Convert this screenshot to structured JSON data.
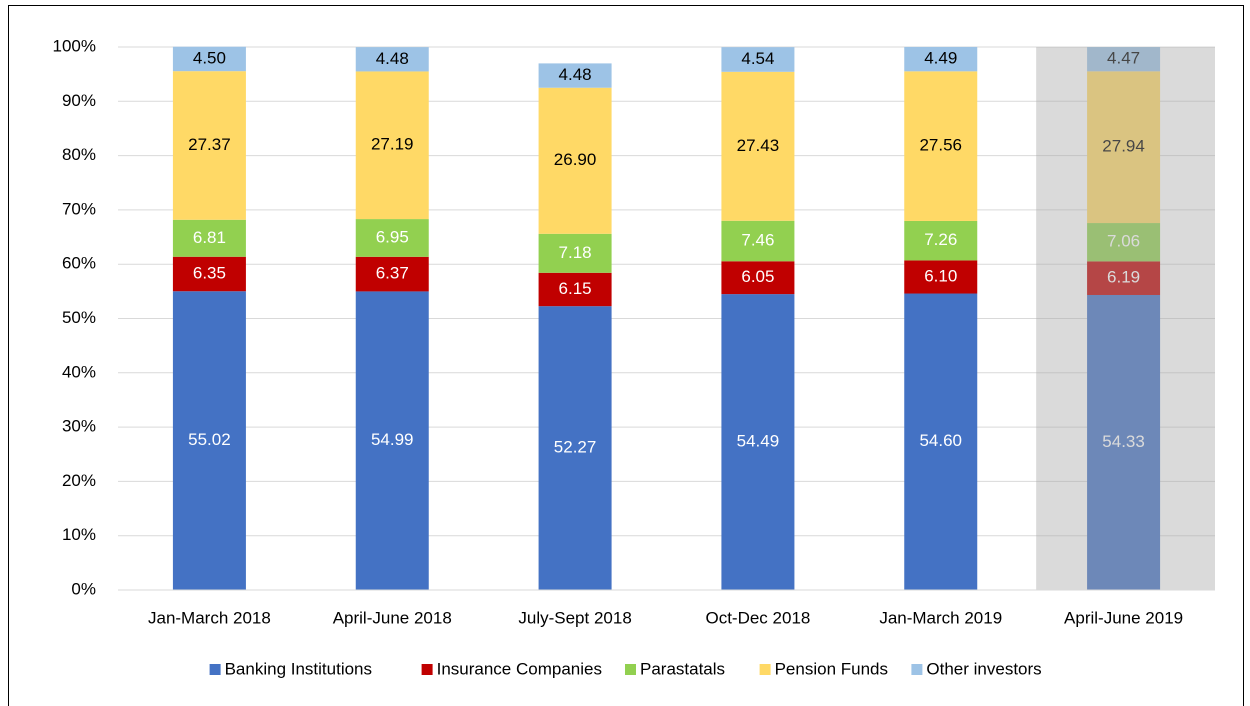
{
  "chart_data": {
    "type": "stacked_bar",
    "categories": [
      "Jan-March 2018",
      "April-June 2018",
      "July-Sept 2018",
      "Oct-Dec 2018",
      "Jan-March 2019",
      "April-June 2019"
    ],
    "series": [
      {
        "name": "Banking Institutions",
        "color": "#4472c4",
        "label_color": "#ffffff",
        "values": [
          55.02,
          54.99,
          52.27,
          54.49,
          54.6,
          54.33
        ],
        "value_labels": [
          "55.02",
          "54.99",
          "52.27",
          "54.49",
          "54.60",
          "54.33"
        ]
      },
      {
        "name": "Insurance Companies",
        "color": "#c00000",
        "label_color": "#ffffff",
        "values": [
          6.35,
          6.37,
          6.15,
          6.05,
          6.1,
          6.19
        ],
        "value_labels": [
          "6.35",
          "6.37",
          "6.15",
          "6.05",
          "6.10",
          "6.19"
        ]
      },
      {
        "name": "Parastatals",
        "color": "#92d050",
        "label_color": "#ffffff",
        "values": [
          6.81,
          6.95,
          7.18,
          7.46,
          7.26,
          7.06
        ],
        "value_labels": [
          "6.81",
          "6.95",
          "7.18",
          "7.46",
          "7.26",
          "7.06"
        ]
      },
      {
        "name": "Pension Funds",
        "color": "#ffd966",
        "label_color": "#000000",
        "values": [
          27.37,
          27.19,
          26.9,
          27.43,
          27.56,
          27.94
        ],
        "value_labels": [
          "27.37",
          "27.19",
          "26.90",
          "27.43",
          "27.56",
          "27.94"
        ]
      },
      {
        "name": "Other investors",
        "color": "#9dc3e6",
        "label_color": "#000000",
        "values": [
          4.5,
          4.48,
          4.48,
          4.54,
          4.49,
          4.47
        ],
        "value_labels": [
          "4.50",
          "4.48",
          "4.48",
          "4.54",
          "4.49",
          "4.47"
        ]
      }
    ],
    "ylim": [
      0,
      100
    ],
    "yticks": [
      {
        "value": 0,
        "label": "0%"
      },
      {
        "value": 10,
        "label": "10%"
      },
      {
        "value": 20,
        "label": "20%"
      },
      {
        "value": 30,
        "label": "30%"
      },
      {
        "value": 40,
        "label": "40%"
      },
      {
        "value": 50,
        "label": "50%"
      },
      {
        "value": 60,
        "label": "60%"
      },
      {
        "value": 70,
        "label": "70%"
      },
      {
        "value": 80,
        "label": "80%"
      },
      {
        "value": 90,
        "label": "90%"
      },
      {
        "value": 100,
        "label": "100%"
      }
    ],
    "grid": true,
    "legend": "bottom",
    "highlight": {
      "category": 5,
      "color": "#a6a6a6"
    }
  }
}
